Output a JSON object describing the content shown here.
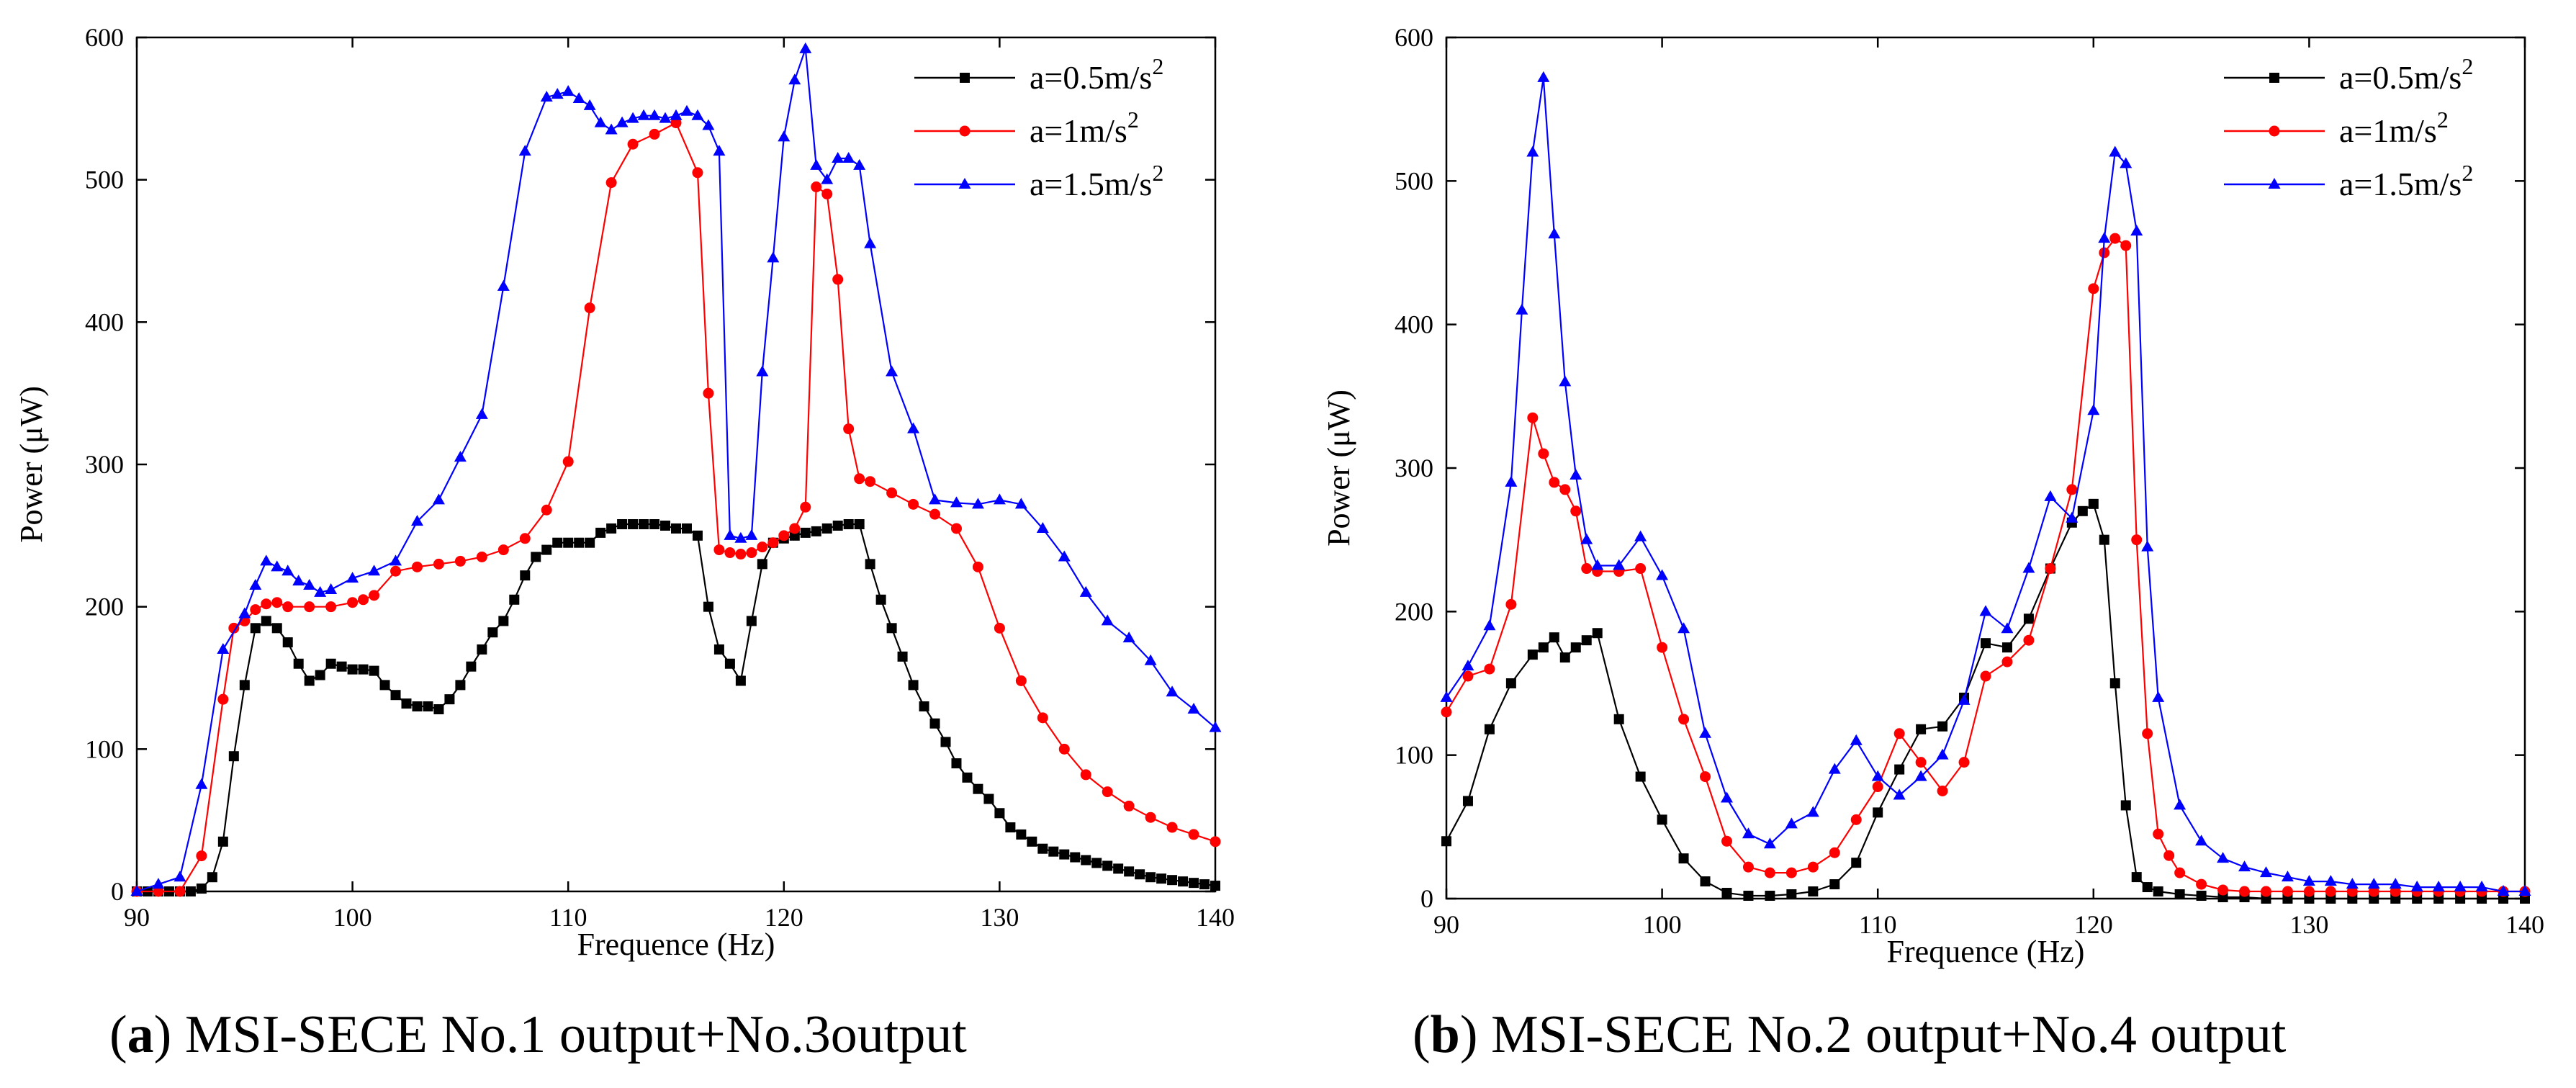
{
  "figure": {
    "captions": [
      {
        "letter": "a",
        "text": "MSI-SECE No.1 output+No.3output"
      },
      {
        "letter": "b",
        "text": "MSI-SECE No.2 output+No.4 output"
      }
    ]
  },
  "chart_data": [
    {
      "id": "a",
      "type": "line",
      "title": "",
      "xlabel": "Frequence (Hz)",
      "ylabel": "Power (μW)",
      "xlim": [
        90,
        140
      ],
      "ylim": [
        0,
        600
      ],
      "xticks": [
        90,
        100,
        110,
        120,
        130,
        140
      ],
      "yticks": [
        0,
        100,
        200,
        300,
        400,
        500,
        600
      ],
      "grid": false,
      "legend_position": "top-right",
      "series": [
        {
          "name": "a=0.5m/s2",
          "label_base": "a=0.5m/s",
          "label_sup": "2",
          "color": "#000000",
          "marker": "square",
          "x": [
            90,
            90.5,
            91,
            91.5,
            92,
            92.5,
            93,
            93.5,
            94,
            94.5,
            95,
            95.5,
            96,
            96.5,
            97,
            97.5,
            98,
            98.5,
            99,
            99.5,
            100,
            100.5,
            101,
            101.5,
            102,
            102.5,
            103,
            103.5,
            104,
            104.5,
            105,
            105.5,
            106,
            106.5,
            107,
            107.5,
            108,
            108.5,
            109,
            109.5,
            110,
            110.5,
            111,
            111.5,
            112,
            112.5,
            113,
            113.5,
            114,
            114.5,
            115,
            115.5,
            116,
            116.5,
            117,
            117.5,
            118,
            118.5,
            119,
            119.5,
            120,
            120.5,
            121,
            121.5,
            122,
            122.5,
            123,
            123.5,
            124,
            124.5,
            125,
            125.5,
            126,
            126.5,
            127,
            127.5,
            128,
            128.5,
            129,
            129.5,
            130,
            130.5,
            131,
            131.5,
            132,
            132.5,
            133,
            133.5,
            134,
            134.5,
            135,
            135.5,
            136,
            136.5,
            137,
            137.5,
            138,
            138.5,
            139,
            139.5,
            140
          ],
          "values": [
            0,
            0,
            0,
            0,
            0,
            0,
            2,
            10,
            35,
            95,
            145,
            185,
            190,
            185,
            175,
            160,
            148,
            152,
            160,
            158,
            156,
            156,
            155,
            145,
            138,
            132,
            130,
            130,
            128,
            135,
            145,
            158,
            170,
            182,
            190,
            205,
            222,
            235,
            240,
            245,
            245,
            245,
            245,
            252,
            255,
            258,
            258,
            258,
            258,
            257,
            255,
            255,
            250,
            200,
            170,
            160,
            148,
            190,
            230,
            245,
            248,
            250,
            252,
            253,
            255,
            257,
            258,
            258,
            230,
            205,
            185,
            165,
            145,
            130,
            118,
            105,
            90,
            80,
            72,
            65,
            55,
            45,
            40,
            35,
            30,
            28,
            26,
            24,
            22,
            20,
            18,
            16,
            14,
            12,
            10,
            9,
            8,
            7,
            6,
            5,
            4
          ]
        },
        {
          "name": "a=1m/s2",
          "label_base": "a=1m/s",
          "label_sup": "2",
          "color": "#ff0000",
          "marker": "circle",
          "x": [
            90,
            91,
            92,
            93,
            94,
            94.5,
            95,
            95.5,
            96,
            96.5,
            97,
            98,
            99,
            100,
            100.5,
            101,
            102,
            103,
            104,
            105,
            106,
            107,
            108,
            109,
            110,
            111,
            112,
            113,
            114,
            115,
            116,
            116.5,
            117,
            117.5,
            118,
            118.5,
            119,
            119.5,
            120,
            120.5,
            121,
            121.5,
            122,
            122.5,
            123,
            123.5,
            124,
            125,
            126,
            127,
            128,
            129,
            130,
            131,
            132,
            133,
            134,
            135,
            136,
            137,
            138,
            139,
            140
          ],
          "values": [
            0,
            0,
            0,
            25,
            135,
            185,
            190,
            198,
            202,
            203,
            200,
            200,
            200,
            203,
            205,
            208,
            225,
            228,
            230,
            232,
            235,
            240,
            248,
            268,
            302,
            410,
            498,
            525,
            532,
            540,
            505,
            350,
            240,
            238,
            237,
            238,
            242,
            245,
            250,
            255,
            270,
            495,
            490,
            430,
            325,
            290,
            288,
            280,
            272,
            265,
            255,
            228,
            185,
            148,
            122,
            100,
            82,
            70,
            60,
            52,
            45,
            40,
            35
          ]
        },
        {
          "name": "a=1.5m/s2",
          "label_base": "a=1.5m/s",
          "label_sup": "2",
          "color": "#0000ff",
          "marker": "triangle",
          "x": [
            90,
            91,
            92,
            93,
            94,
            95,
            95.5,
            96,
            96.5,
            97,
            97.5,
            98,
            98.5,
            99,
            100,
            101,
            102,
            103,
            104,
            105,
            106,
            107,
            108,
            109,
            109.5,
            110,
            110.5,
            111,
            111.5,
            112,
            112.5,
            113,
            113.5,
            114,
            114.5,
            115,
            115.5,
            116,
            116.5,
            117,
            117.5,
            118,
            118.5,
            119,
            119.5,
            120,
            120.5,
            121,
            121.5,
            122,
            122.5,
            123,
            123.5,
            124,
            125,
            126,
            127,
            128,
            129,
            130,
            131,
            132,
            133,
            134,
            135,
            136,
            137,
            138,
            139,
            140
          ],
          "values": [
            0,
            5,
            10,
            75,
            170,
            195,
            215,
            232,
            228,
            225,
            218,
            215,
            210,
            212,
            220,
            225,
            232,
            260,
            275,
            305,
            335,
            425,
            520,
            558,
            560,
            562,
            557,
            552,
            540,
            535,
            540,
            543,
            545,
            545,
            543,
            545,
            548,
            545,
            538,
            520,
            250,
            248,
            250,
            365,
            445,
            530,
            570,
            592,
            510,
            500,
            515,
            515,
            510,
            455,
            365,
            325,
            275,
            273,
            272,
            275,
            272,
            255,
            235,
            210,
            190,
            178,
            162,
            140,
            128,
            115
          ]
        }
      ]
    },
    {
      "id": "b",
      "type": "line",
      "title": "",
      "xlabel": "Frequence (Hz)",
      "ylabel": "Power (μW)",
      "xlim": [
        90,
        140
      ],
      "ylim": [
        0,
        600
      ],
      "xticks": [
        90,
        100,
        110,
        120,
        130,
        140
      ],
      "yticks": [
        0,
        100,
        200,
        300,
        400,
        500,
        600
      ],
      "grid": false,
      "legend_position": "top-right",
      "series": [
        {
          "name": "a=0.5m/s2",
          "label_base": "a=0.5m/s",
          "label_sup": "2",
          "color": "#000000",
          "marker": "square",
          "x": [
            90,
            91,
            92,
            93,
            94,
            94.5,
            95,
            95.5,
            96,
            96.5,
            97,
            98,
            99,
            100,
            101,
            102,
            103,
            104,
            105,
            106,
            107,
            108,
            109,
            110,
            111,
            112,
            113,
            114,
            115,
            116,
            117,
            118,
            119,
            119.5,
            120,
            120.5,
            121,
            121.5,
            122,
            122.5,
            123,
            124,
            125,
            126,
            127,
            128,
            129,
            130,
            131,
            132,
            133,
            134,
            135,
            136,
            137,
            138,
            139,
            140
          ],
          "values": [
            40,
            68,
            118,
            150,
            170,
            175,
            182,
            168,
            175,
            180,
            185,
            125,
            85,
            55,
            28,
            12,
            4,
            2,
            2,
            3,
            5,
            10,
            25,
            60,
            90,
            118,
            120,
            140,
            178,
            175,
            195,
            230,
            262,
            270,
            275,
            250,
            150,
            65,
            15,
            8,
            5,
            3,
            2,
            1,
            1,
            0,
            0,
            0,
            0,
            0,
            0,
            0,
            0,
            0,
            0,
            0,
            0,
            0
          ]
        },
        {
          "name": "a=1m/s2",
          "label_base": "a=1m/s",
          "label_sup": "2",
          "color": "#ff0000",
          "marker": "circle",
          "x": [
            90,
            91,
            92,
            93,
            94,
            94.5,
            95,
            95.5,
            96,
            96.5,
            97,
            98,
            99,
            100,
            101,
            102,
            103,
            104,
            105,
            106,
            107,
            108,
            109,
            110,
            111,
            112,
            113,
            114,
            115,
            116,
            117,
            118,
            119,
            120,
            120.5,
            121,
            121.5,
            122,
            122.5,
            123,
            123.5,
            124,
            125,
            126,
            127,
            128,
            129,
            130,
            131,
            132,
            133,
            134,
            135,
            136,
            137,
            138,
            139,
            140
          ],
          "values": [
            130,
            155,
            160,
            205,
            335,
            310,
            290,
            285,
            270,
            230,
            228,
            228,
            230,
            175,
            125,
            85,
            40,
            22,
            18,
            18,
            22,
            32,
            55,
            78,
            115,
            95,
            75,
            95,
            155,
            165,
            180,
            230,
            285,
            425,
            450,
            460,
            455,
            250,
            115,
            45,
            30,
            18,
            10,
            6,
            5,
            5,
            5,
            5,
            5,
            5,
            5,
            5,
            5,
            5,
            5,
            5,
            5,
            5
          ]
        },
        {
          "name": "a=1.5m/s2",
          "label_base": "a=1.5m/s",
          "label_sup": "2",
          "color": "#0000ff",
          "marker": "triangle",
          "x": [
            90,
            91,
            92,
            93,
            93.5,
            94,
            94.5,
            95,
            95.5,
            96,
            96.5,
            97,
            98,
            99,
            100,
            101,
            102,
            103,
            104,
            105,
            106,
            107,
            108,
            109,
            110,
            111,
            112,
            113,
            114,
            115,
            116,
            117,
            118,
            119,
            120,
            120.5,
            121,
            121.5,
            122,
            122.5,
            123,
            124,
            125,
            126,
            127,
            128,
            129,
            130,
            131,
            132,
            133,
            134,
            135,
            136,
            137,
            138,
            139,
            140
          ],
          "values": [
            140,
            162,
            190,
            290,
            410,
            520,
            572,
            463,
            360,
            295,
            250,
            232,
            232,
            252,
            225,
            188,
            115,
            70,
            45,
            38,
            52,
            60,
            90,
            110,
            85,
            72,
            85,
            100,
            138,
            200,
            188,
            230,
            280,
            265,
            340,
            460,
            520,
            512,
            465,
            245,
            140,
            65,
            40,
            28,
            22,
            18,
            15,
            12,
            12,
            10,
            10,
            10,
            8,
            8,
            8,
            8,
            5,
            5
          ]
        }
      ]
    }
  ]
}
